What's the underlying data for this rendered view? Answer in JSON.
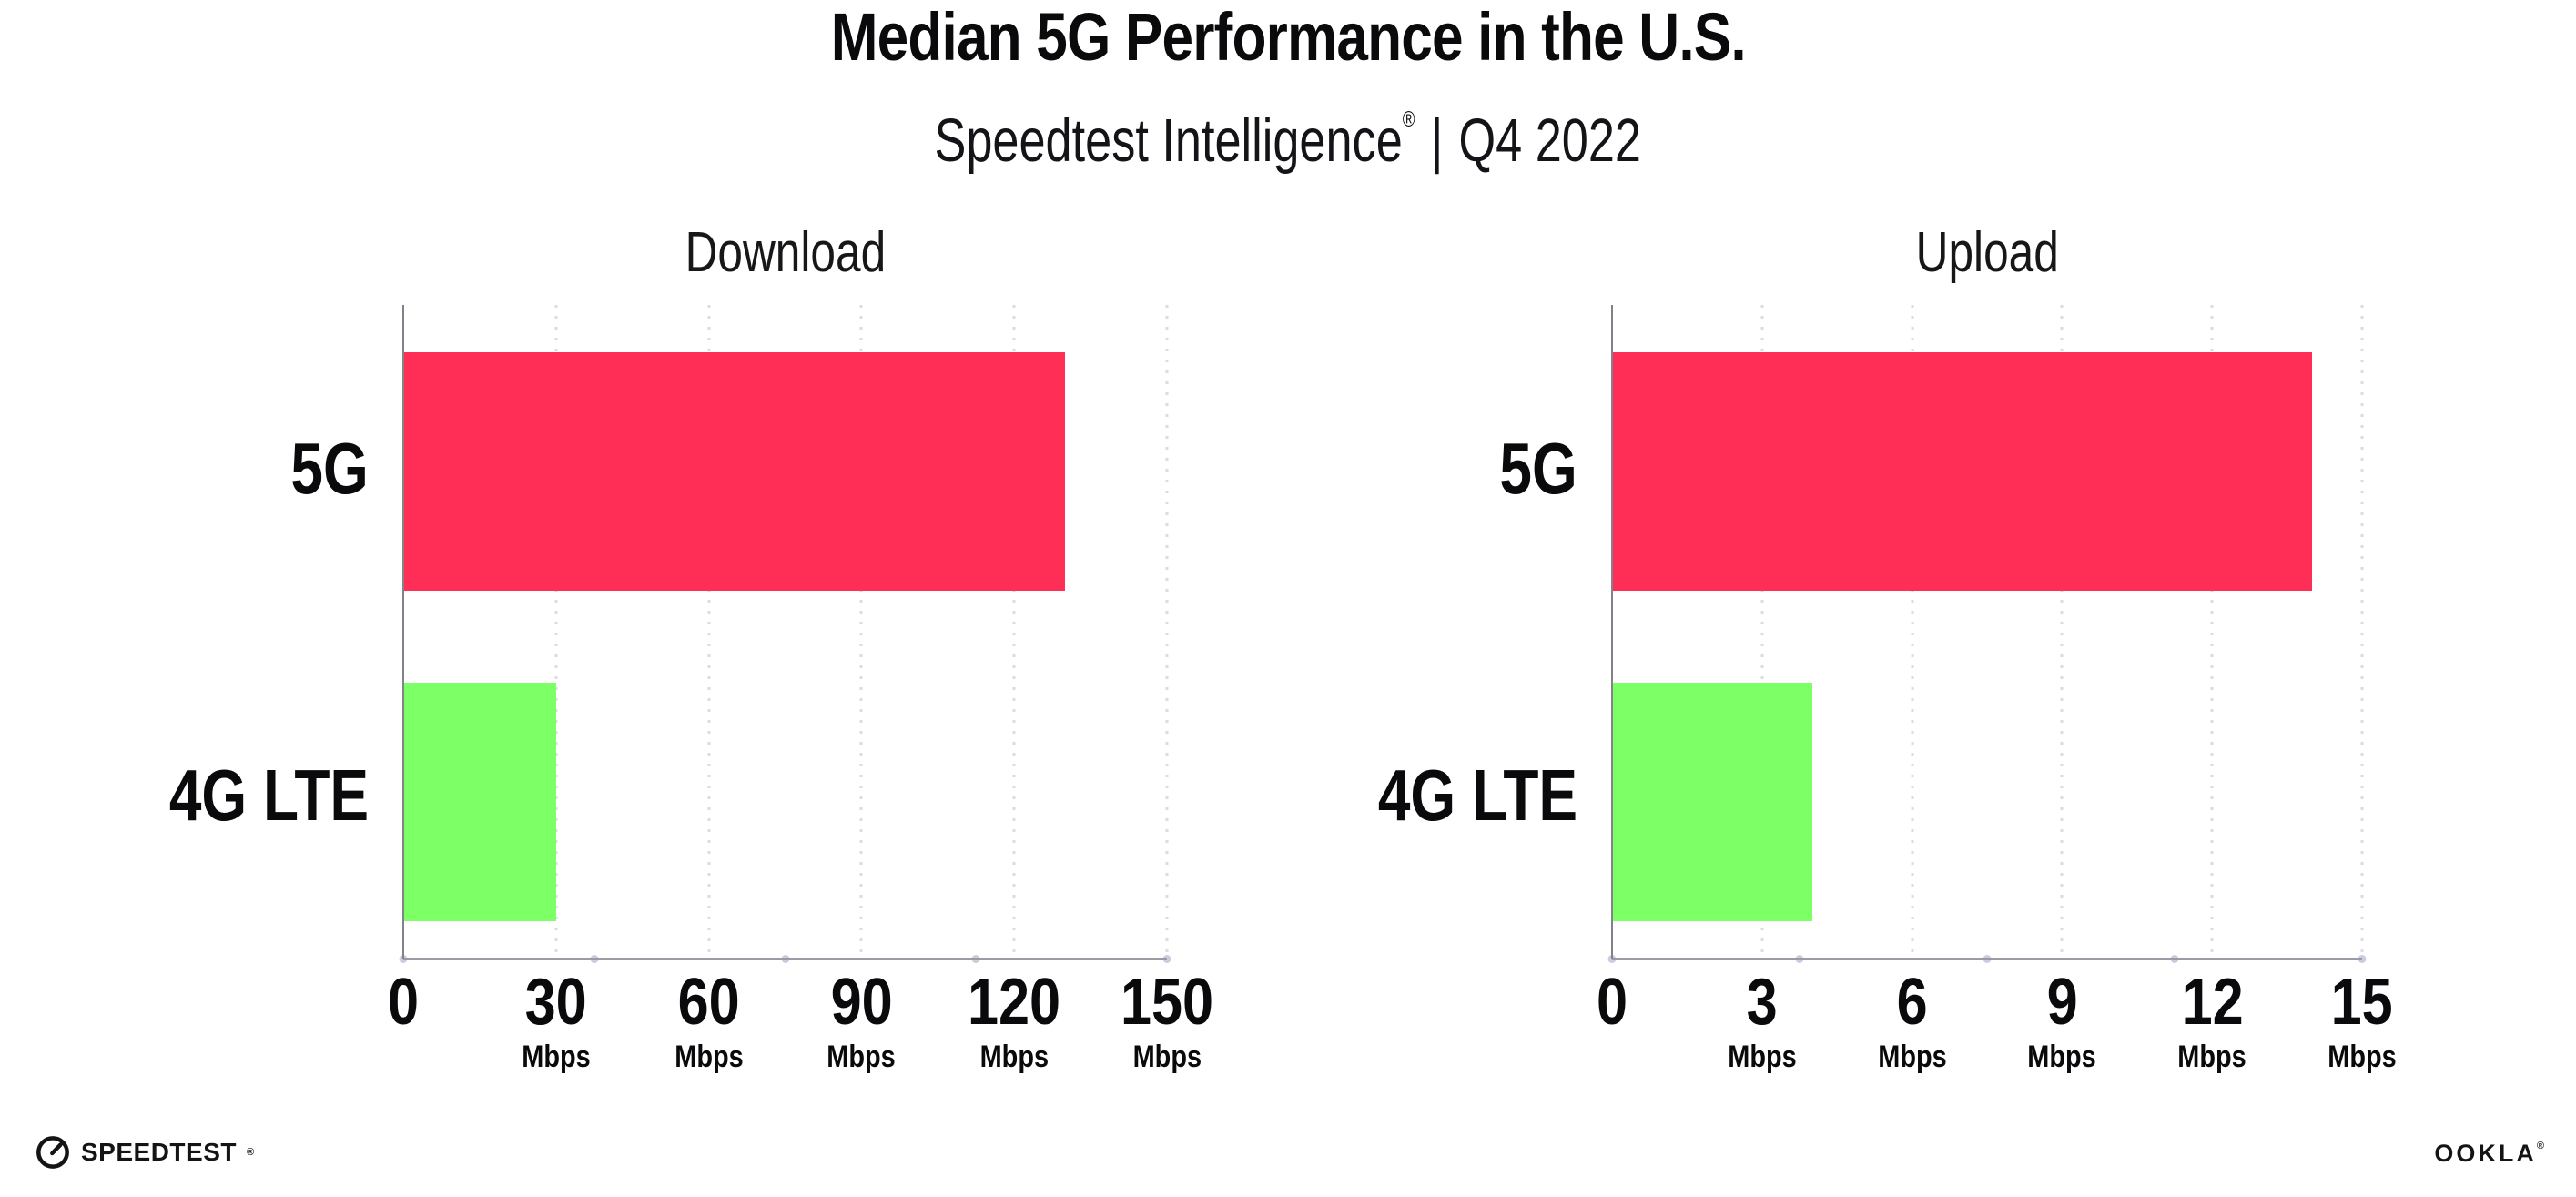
{
  "header": {
    "title": "Median 5G Performance in the U.S.",
    "subtitle_brand": "Speedtest Intelligence",
    "subtitle_reg": "®",
    "subtitle_separator": "|",
    "subtitle_period": "Q4 2022"
  },
  "chart_data": [
    {
      "type": "bar",
      "orientation": "horizontal",
      "title": "Download",
      "categories": [
        "5G",
        "4G LTE"
      ],
      "values": [
        130,
        30
      ],
      "unit": "Mbps",
      "xlabel": "",
      "ylabel": "",
      "xlim": [
        0,
        150
      ],
      "ticks": [
        0,
        30,
        60,
        90,
        120,
        150
      ],
      "bar_colors": [
        "#FF2E56",
        "#7DFF66"
      ],
      "grid": "dotted-vertical",
      "legend": "none"
    },
    {
      "type": "bar",
      "orientation": "horizontal",
      "title": "Upload",
      "categories": [
        "5G",
        "4G LTE"
      ],
      "values": [
        14,
        4
      ],
      "unit": "Mbps",
      "xlabel": "",
      "ylabel": "",
      "xlim": [
        0,
        15
      ],
      "ticks": [
        0,
        3,
        6,
        9,
        12,
        15
      ],
      "bar_colors": [
        "#FF2E56",
        "#7DFF66"
      ],
      "grid": "dotted-vertical",
      "legend": "none"
    }
  ],
  "footer": {
    "speedtest_label": "SPEEDTEST",
    "speedtest_reg": "®",
    "ookla_label": "OOKLA",
    "ookla_reg": "®"
  },
  "colors": {
    "bar_5g": "#FF2E56",
    "bar_4g_lte": "#7DFF66",
    "gridline": "#DBDBE5",
    "x_axis": "#9B9BA3",
    "y_axis": "#82828A",
    "axis_dot": "#C9CDE0",
    "text": "#0A0A0C",
    "background": "#FFFFFF"
  }
}
